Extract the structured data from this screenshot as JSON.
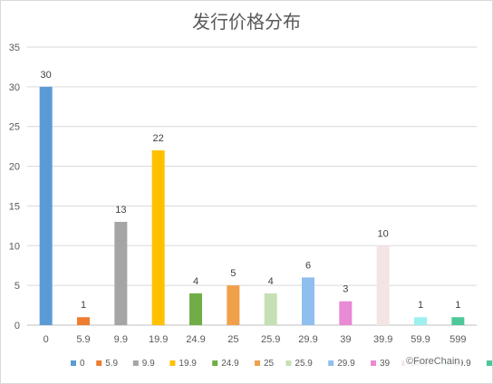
{
  "chart_data": {
    "type": "bar",
    "title": "发行价格分布",
    "categories": [
      "0",
      "5.9",
      "9.9",
      "19.9",
      "24.9",
      "25",
      "25.9",
      "29.9",
      "39",
      "39.9",
      "59.9",
      "599"
    ],
    "values": [
      30,
      1,
      13,
      22,
      4,
      5,
      4,
      6,
      3,
      10,
      1,
      1
    ],
    "colors": [
      "#5b9bd5",
      "#ed7d31",
      "#a5a5a5",
      "#ffc000",
      "#70ad47",
      "#f0a04b",
      "#c5e0b4",
      "#8fbfef",
      "#e98ad4",
      "#f4e4e4",
      "#9ef0ef",
      "#4fc79a"
    ],
    "ylim": [
      0,
      35
    ],
    "yticks": [
      0,
      5,
      10,
      15,
      20,
      25,
      30,
      35
    ],
    "grid": true,
    "legend": "bottom",
    "xlabel": "",
    "ylabel": ""
  },
  "watermark": "©ForeChain"
}
